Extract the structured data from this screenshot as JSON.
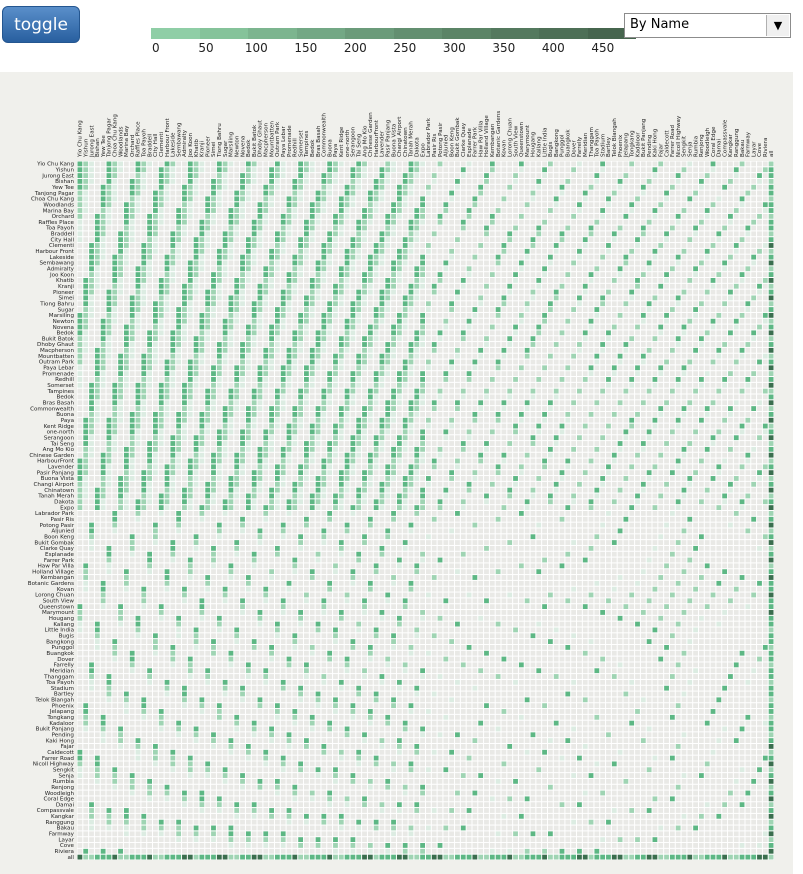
{
  "toolbar": {
    "toggle_label": "toggle"
  },
  "legend": {
    "ticks": [
      "0",
      "50",
      "100",
      "150",
      "200",
      "250",
      "300",
      "350",
      "400",
      "450"
    ],
    "colors": [
      "#8fcea6",
      "#85c39a",
      "#7cb58f",
      "#73a885",
      "#6b9b7a",
      "#638f70",
      "#5b8466",
      "#54795e",
      "#4d6f56",
      "#46654e"
    ]
  },
  "sort": {
    "selected": "By Name",
    "arrow_glyph": "▼"
  },
  "matrix": {
    "rows": [
      "Yio Chu Kang",
      "Yishun",
      "Jurong East",
      "Bishan",
      "Yew Tee",
      "Tanjong Pagar",
      "Choa Chu Kang",
      "Woodlands",
      "Marina Bay",
      "Orchard",
      "Raffles Place",
      "Toa Payoh",
      "Braddell",
      "City Hall",
      "Clementi",
      "Harbour Front",
      "Lakeside",
      "Sembawang",
      "Admiralty",
      "Joo Koon",
      "Khatib",
      "Kranji",
      "Pioneer",
      "Simei",
      "Tiong Bahru",
      "Sugar",
      "Marsiling",
      "Newton",
      "Novena",
      "Bedok",
      "Bukit Batok",
      "Dhoby Ghaut",
      "Macpherson",
      "Mountbatten",
      "Outram Park",
      "Paya Lebar",
      "Promenade",
      "Redhill",
      "Somerset",
      "Tampines",
      "Bedok",
      "Bras Basah",
      "Commonwealth",
      "Buona",
      "Paya",
      "Kent Ridge",
      "one-north",
      "Serangoon",
      "Tai Seng",
      "Ang Mo Kio",
      "Chinese Garden",
      "HarbourFront",
      "Lavender",
      "Pasir Panjang",
      "Buona Vista",
      "Changi Airport",
      "Chinatown",
      "Tanah Merah",
      "Dakota",
      "Expo",
      "Labrador Park",
      "Pasir Ris",
      "Potong Pasir",
      "Aljunied",
      "Boon Keng",
      "Bukit Gombak",
      "Clarke Quay",
      "Esplanade",
      "Farrer Park",
      "Haw Par Villa",
      "Holland Village",
      "Kembangan",
      "Botanic Gardens",
      "Kovan",
      "Lorong Chuan",
      "South View",
      "Queenstown",
      "Marymount",
      "Hougang",
      "Kallang",
      "Little India",
      "Bugis",
      "Bangkong",
      "Punggol",
      "Buangkok",
      "Dover",
      "Farrelly",
      "Meridian",
      "Thanggam",
      "Toa Payoh",
      "Stadium",
      "Bartley",
      "Telok Blangah",
      "Phoenix",
      "Jelapang",
      "Tongkang",
      "Kadaloor",
      "Bukit Panjang",
      "Pending",
      "Kaki Hong",
      "Fajar",
      "Caldecott",
      "Farrer Road",
      "Nicoll Highway",
      "Sengkit",
      "Senja",
      "Rumbia",
      "Renjong",
      "Woodleigh",
      "Coral Edge",
      "Damai",
      "Compassvale",
      "Kangkar",
      "Ranggung",
      "Bakau",
      "Farmway",
      "Layar",
      "Cove",
      "Riviera",
      "all"
    ],
    "cols": [
      "Yio Chu Kang",
      "Yishun",
      "Jurong East",
      "Bishan",
      "Yew Tee",
      "Tanjong Pagar",
      "Choa Chu Kang",
      "Woodlands",
      "Marina Bay",
      "Orchard",
      "Raffles Place",
      "Toa Payoh",
      "Braddell",
      "City Hall",
      "Clementi",
      "Harbour Front",
      "Lakeside",
      "Sembawang",
      "Admiralty",
      "Joo Koon",
      "Khatib",
      "Kranji",
      "Pioneer",
      "Simei",
      "Tiong Bahru",
      "Sugar",
      "Marsiling",
      "Newton",
      "Novena",
      "Bedok",
      "Bukit Batok",
      "Dhoby Ghaut",
      "Macpherson",
      "Mountbatten",
      "Outram Park",
      "Paya Lebar",
      "Promenade",
      "Redhill",
      "Somerset",
      "Tampines",
      "Bedok",
      "Bras Basah",
      "Commonwealth",
      "Buona",
      "Paya",
      "Kent Ridge",
      "one-north",
      "Serangoon",
      "Tai Seng",
      "Ang Mo Kio",
      "Chinese Garden",
      "HarbourFront",
      "Lavender",
      "Pasir Panjang",
      "Buona Vista",
      "Changi Airport",
      "Chinatown",
      "Tanah Merah",
      "Dakota",
      "Expo",
      "Labrador Park",
      "Pasir Ris",
      "Potong Pasir",
      "Aljunied",
      "Boon Keng",
      "Bukit Gombak",
      "Clarke Quay",
      "Esplanade",
      "Farrer Park",
      "Haw Par Villa",
      "Holland Village",
      "Kembangan",
      "Botanic Gardens",
      "Kovan",
      "Lorong Chuan",
      "South View",
      "Queenstown",
      "Marymount",
      "Hougang",
      "Kallang",
      "Little India",
      "Bugis",
      "Bangkong",
      "Punggol",
      "Buangkok",
      "Dover",
      "Farrelly",
      "Meridian",
      "Thanggam",
      "Toa Payoh",
      "Stadium",
      "Bartley",
      "Telok Blangah",
      "Phoenix",
      "Jelapang",
      "Tongkang",
      "Kadaloor",
      "Bukit Panjang",
      "Pending",
      "Kaki Hong",
      "Fajar",
      "Caldecott",
      "Farrer Road",
      "Nicoll Highway",
      "Sengkit",
      "Senja",
      "Rumbia",
      "Renjong",
      "Woodleigh",
      "Coral Edge",
      "Damai",
      "Compassvale",
      "Kangkar",
      "Ranggung",
      "Bakau",
      "Farmway",
      "Layar",
      "Cove",
      "Riviera",
      "all"
    ],
    "colors": {
      "empty": "#e9e9e6",
      "low": "#dcece2",
      "mid": "#9fd4b3",
      "high": "#5db784",
      "max": "#3a6e4e"
    }
  }
}
